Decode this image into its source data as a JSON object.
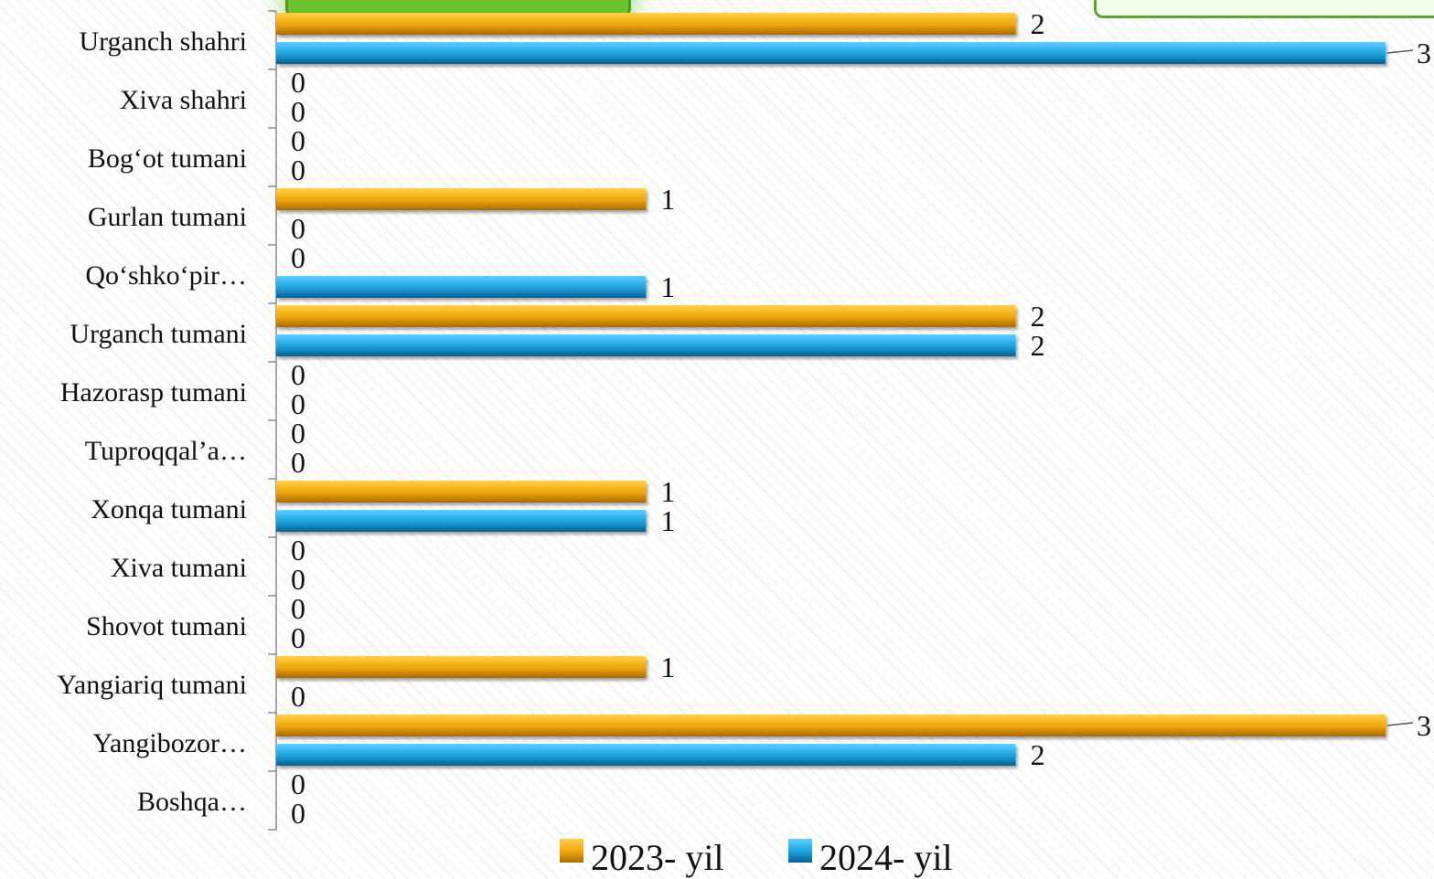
{
  "chart_data": {
    "type": "bar",
    "orientation": "horizontal",
    "categories": [
      "Urganch shahri",
      "Xiva shahri",
      "Bog‘ot tumani",
      "Gurlan tumani",
      "Qo‘shko‘pir…",
      "Urganch tumani",
      "Hazorasp tumani",
      "Tuproqqal’a…",
      "Xonqa tumani",
      "Xiva tumani",
      "Shovot tumani",
      "Yangiariq tumani",
      "Yangibozor…",
      "Boshqa…"
    ],
    "series": [
      {
        "name": "2023- yil",
        "color": "#f0a30a",
        "values": [
          2,
          0,
          0,
          1,
          0,
          2,
          0,
          0,
          1,
          0,
          0,
          1,
          3,
          0
        ]
      },
      {
        "name": "2024- yil",
        "color": "#1aa0dc",
        "values": [
          3,
          0,
          0,
          0,
          1,
          2,
          0,
          0,
          1,
          0,
          0,
          0,
          2,
          0
        ]
      }
    ],
    "xlim": [
      0,
      3
    ],
    "grid": false,
    "legend_position": "bottom",
    "data_labels": true,
    "title": "",
    "xlabel": "",
    "ylabel": ""
  }
}
